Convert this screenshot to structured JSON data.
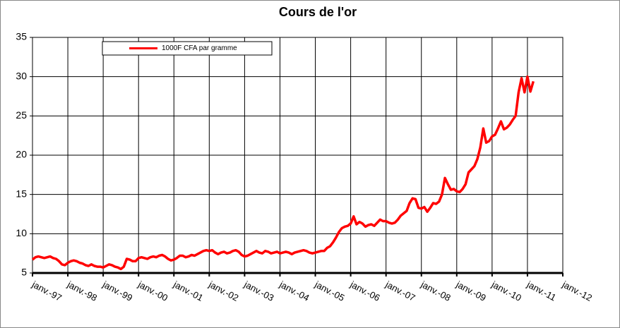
{
  "chart_data": {
    "type": "line",
    "title": "Cours de l'or",
    "x": [
      "1997-01",
      "1997-02",
      "1997-03",
      "1997-04",
      "1997-05",
      "1997-06",
      "1997-07",
      "1997-08",
      "1997-09",
      "1997-10",
      "1997-11",
      "1997-12",
      "1998-01",
      "1998-02",
      "1998-03",
      "1998-04",
      "1998-05",
      "1998-06",
      "1998-07",
      "1998-08",
      "1998-09",
      "1998-10",
      "1998-11",
      "1998-12",
      "1999-01",
      "1999-02",
      "1999-03",
      "1999-04",
      "1999-05",
      "1999-06",
      "1999-07",
      "1999-08",
      "1999-09",
      "1999-10",
      "1999-11",
      "1999-12",
      "2000-01",
      "2000-02",
      "2000-03",
      "2000-04",
      "2000-05",
      "2000-06",
      "2000-07",
      "2000-08",
      "2000-09",
      "2000-10",
      "2000-11",
      "2000-12",
      "2001-01",
      "2001-02",
      "2001-03",
      "2001-04",
      "2001-05",
      "2001-06",
      "2001-07",
      "2001-08",
      "2001-09",
      "2001-10",
      "2001-11",
      "2001-12",
      "2002-01",
      "2002-02",
      "2002-03",
      "2002-04",
      "2002-05",
      "2002-06",
      "2002-07",
      "2002-08",
      "2002-09",
      "2002-10",
      "2002-11",
      "2002-12",
      "2003-01",
      "2003-02",
      "2003-03",
      "2003-04",
      "2003-05",
      "2003-06",
      "2003-07",
      "2003-08",
      "2003-09",
      "2003-10",
      "2003-11",
      "2003-12",
      "2004-01",
      "2004-02",
      "2004-03",
      "2004-04",
      "2004-05",
      "2004-06",
      "2004-07",
      "2004-08",
      "2004-09",
      "2004-10",
      "2004-11",
      "2004-12",
      "2005-01",
      "2005-02",
      "2005-03",
      "2005-04",
      "2005-05",
      "2005-06",
      "2005-07",
      "2005-08",
      "2005-09",
      "2005-10",
      "2005-11",
      "2005-12",
      "2006-01",
      "2006-02",
      "2006-03",
      "2006-04",
      "2006-05",
      "2006-06",
      "2006-07",
      "2006-08",
      "2006-09",
      "2006-10",
      "2006-11",
      "2006-12",
      "2007-01",
      "2007-02",
      "2007-03",
      "2007-04",
      "2007-05",
      "2007-06",
      "2007-07",
      "2007-08",
      "2007-09",
      "2007-10",
      "2007-11",
      "2007-12",
      "2008-01",
      "2008-02",
      "2008-03",
      "2008-04",
      "2008-05",
      "2008-06",
      "2008-07",
      "2008-08",
      "2008-09",
      "2008-10",
      "2008-11",
      "2008-12",
      "2009-01",
      "2009-02",
      "2009-03",
      "2009-04",
      "2009-05",
      "2009-06",
      "2009-07",
      "2009-08",
      "2009-09",
      "2009-10",
      "2009-11",
      "2009-12",
      "2010-01",
      "2010-02",
      "2010-03",
      "2010-04",
      "2010-05",
      "2010-06",
      "2010-07",
      "2010-08",
      "2010-09",
      "2010-10",
      "2010-11",
      "2010-12",
      "2011-01",
      "2011-02",
      "2011-03"
    ],
    "series": [
      {
        "name": "1000F CFA par gramme",
        "color": "#ff0000",
        "values": [
          6.7,
          7.0,
          7.1,
          7.0,
          6.9,
          7.0,
          7.1,
          6.9,
          6.8,
          6.5,
          6.1,
          6.0,
          6.3,
          6.5,
          6.6,
          6.5,
          6.3,
          6.2,
          6.0,
          5.9,
          6.1,
          5.9,
          5.8,
          5.8,
          5.7,
          5.9,
          6.1,
          6.0,
          5.8,
          5.7,
          5.5,
          5.8,
          6.8,
          6.7,
          6.5,
          6.5,
          6.9,
          7.0,
          6.9,
          6.8,
          7.0,
          7.1,
          7.0,
          7.2,
          7.3,
          7.1,
          6.8,
          6.6,
          6.7,
          6.9,
          7.2,
          7.2,
          7.0,
          7.1,
          7.3,
          7.2,
          7.4,
          7.6,
          7.8,
          7.9,
          7.8,
          7.9,
          7.6,
          7.4,
          7.6,
          7.7,
          7.5,
          7.6,
          7.8,
          7.9,
          7.7,
          7.3,
          7.1,
          7.2,
          7.4,
          7.6,
          7.8,
          7.6,
          7.5,
          7.8,
          7.7,
          7.5,
          7.6,
          7.7,
          7.5,
          7.6,
          7.7,
          7.6,
          7.4,
          7.6,
          7.7,
          7.8,
          7.9,
          7.8,
          7.6,
          7.5,
          7.6,
          7.7,
          7.8,
          7.8,
          8.2,
          8.4,
          8.9,
          9.5,
          10.2,
          10.7,
          10.9,
          11.0,
          11.3,
          12.2,
          11.2,
          11.5,
          11.3,
          10.9,
          11.1,
          11.2,
          11.0,
          11.4,
          11.8,
          11.6,
          11.6,
          11.4,
          11.3,
          11.4,
          11.8,
          12.3,
          12.6,
          12.9,
          13.9,
          14.5,
          14.4,
          13.3,
          13.2,
          13.4,
          12.8,
          13.3,
          13.9,
          13.8,
          14.1,
          15.0,
          17.1,
          16.3,
          15.6,
          15.7,
          15.4,
          15.3,
          15.7,
          16.3,
          17.8,
          18.2,
          18.6,
          19.5,
          21.0,
          23.4,
          21.6,
          21.8,
          22.4,
          22.6,
          23.4,
          24.3,
          23.3,
          23.5,
          23.9,
          24.5,
          25.0,
          28.0,
          29.8,
          28.0,
          30.0,
          28.1,
          29.4
        ]
      }
    ],
    "xlim": [
      "1997-01",
      "2012-01"
    ],
    "xticks": [
      {
        "value": "1997-01",
        "label": "janv.-97"
      },
      {
        "value": "1998-01",
        "label": "janv.-98"
      },
      {
        "value": "1999-01",
        "label": "janv.-99"
      },
      {
        "value": "2000-01",
        "label": "janv.-00"
      },
      {
        "value": "2001-01",
        "label": "janv.-01"
      },
      {
        "value": "2002-01",
        "label": "janv.-02"
      },
      {
        "value": "2003-01",
        "label": "janv.-03"
      },
      {
        "value": "2004-01",
        "label": "janv.-04"
      },
      {
        "value": "2005-01",
        "label": "janv.-05"
      },
      {
        "value": "2006-01",
        "label": "janv.-06"
      },
      {
        "value": "2007-01",
        "label": "janv.-07"
      },
      {
        "value": "2008-01",
        "label": "janv.-08"
      },
      {
        "value": "2009-01",
        "label": "janv.-09"
      },
      {
        "value": "2010-01",
        "label": "janv.-10"
      },
      {
        "value": "2011-01",
        "label": "janv.-11"
      },
      {
        "value": "2012-01",
        "label": "janv.-12"
      }
    ],
    "ylim": [
      5,
      35
    ],
    "yticks": [
      5,
      10,
      15,
      20,
      25,
      30,
      35
    ],
    "grid": true,
    "legend": "upper-left"
  }
}
